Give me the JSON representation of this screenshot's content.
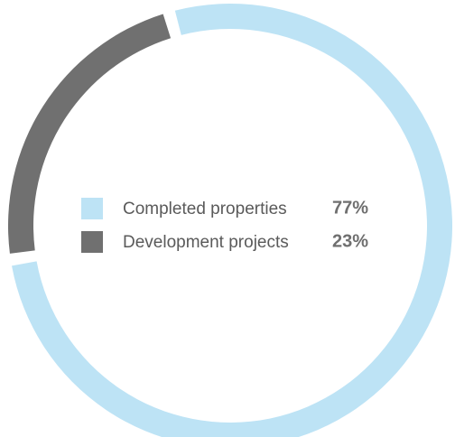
{
  "chart_data": {
    "type": "donut",
    "categories": [
      "Completed properties",
      "Development projects"
    ],
    "values": [
      77,
      23
    ],
    "value_labels": [
      "77%",
      "23%"
    ],
    "colors": [
      "#bde3f5",
      "#707070"
    ]
  }
}
